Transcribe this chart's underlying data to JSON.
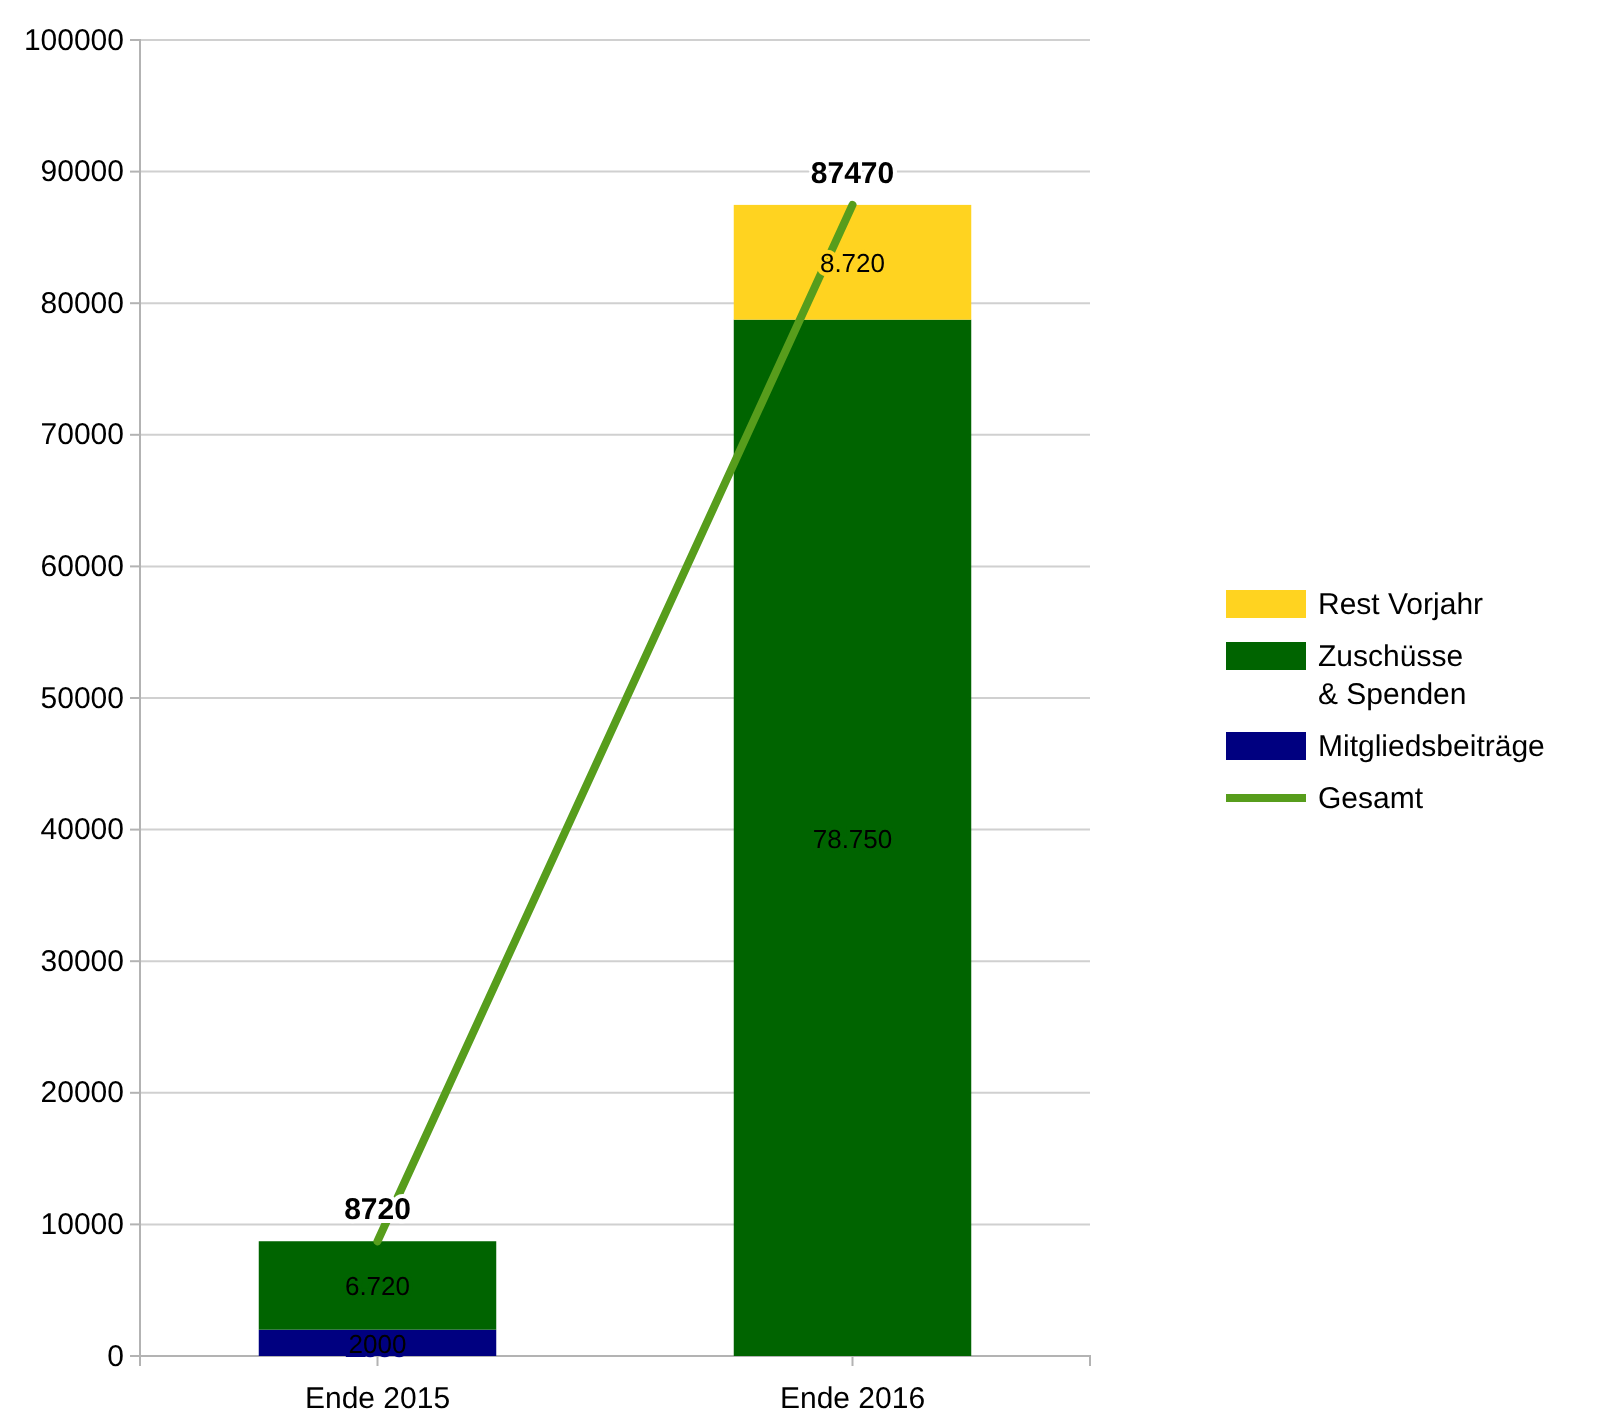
{
  "chart_data": {
    "type": "bar",
    "stacked": true,
    "categories": [
      "Ende 2015",
      "Ende 2016"
    ],
    "series": [
      {
        "name": "Mitgliedsbeiträge",
        "color": "#000080",
        "values": [
          2000,
          null
        ],
        "value_labels": [
          "2000",
          null
        ]
      },
      {
        "name": "Zuschüsse\n& Spenden",
        "color": "#006400",
        "values": [
          6720,
          78750
        ],
        "value_labels": [
          "6.720",
          "78.750"
        ]
      },
      {
        "name": "Rest Vorjahr",
        "color": "#ffd320",
        "values": [
          null,
          8720
        ],
        "value_labels": [
          null,
          "8.720"
        ]
      },
      {
        "name": "Gesamt",
        "type": "line",
        "color": "#579d1c",
        "values": [
          8720,
          87470
        ],
        "value_labels": [
          "8720",
          "87470"
        ]
      }
    ],
    "ylim": [
      0,
      100000
    ],
    "yticks": [
      0,
      10000,
      20000,
      30000,
      40000,
      50000,
      60000,
      70000,
      80000,
      90000,
      100000
    ],
    "grid": "y",
    "legend": "right"
  }
}
